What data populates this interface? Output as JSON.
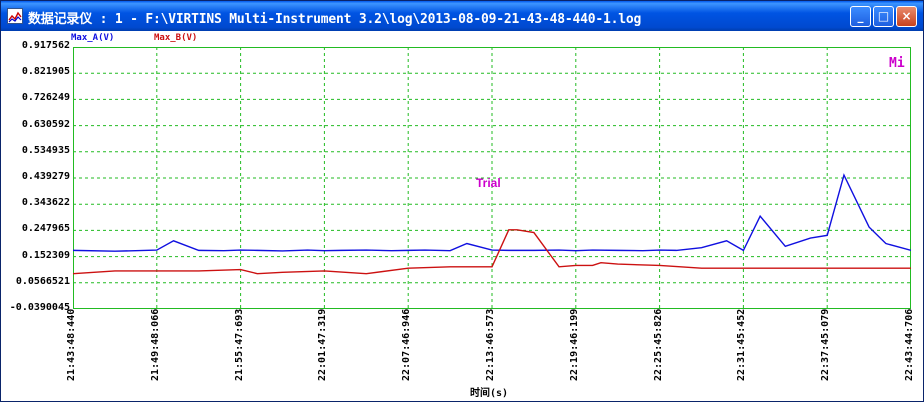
{
  "window": {
    "title": "数据记录仪 : 1 - F:\\VIRTINS Multi-Instrument 3.2\\log\\2013-08-09-21-43-48-440-1.log",
    "buttons": {
      "minimize": "_",
      "maximize": "□",
      "close": "×"
    }
  },
  "watermark": "Trial",
  "corner_label": "Mi",
  "colors": {
    "series_a": "#1010e0",
    "series_b": "#cc1111",
    "grid": "#22bb22",
    "accent": "#cc00cc"
  },
  "chart_data": {
    "type": "line",
    "xlabel": "时间(s)",
    "x_ticks": [
      "21:43:48:440",
      "21:49:48:066",
      "21:55:47:693",
      "22:01:47:319",
      "22:07:46:946",
      "22:13:46:573",
      "22:19:46:199",
      "22:25:45:826",
      "22:31:45:452",
      "22:37:45:079",
      "22:43:44:706"
    ],
    "y_ticks": [
      "0.917562",
      "0.821905",
      "0.726249",
      "0.630592",
      "0.534935",
      "0.439279",
      "0.343622",
      "0.247965",
      "0.152309",
      "0.0566521",
      "-0.0390045"
    ],
    "ylim": [
      -0.0390045,
      0.917562
    ],
    "grid": true,
    "series": [
      {
        "name": "Max_A(V)",
        "color": "#1010e0",
        "x": [
          0,
          5,
          10,
          12,
          15,
          18,
          20,
          22,
          25,
          28,
          30,
          32,
          35,
          38,
          40,
          42,
          45,
          47,
          50,
          52,
          55,
          58,
          60,
          62,
          65,
          68,
          70,
          72,
          75,
          78,
          80,
          82,
          85,
          88,
          90,
          92,
          95,
          97,
          100
        ],
        "y": [
          0.175,
          0.172,
          0.176,
          0.21,
          0.175,
          0.174,
          0.176,
          0.175,
          0.173,
          0.176,
          0.174,
          0.175,
          0.176,
          0.174,
          0.175,
          0.176,
          0.174,
          0.2,
          0.176,
          0.175,
          0.175,
          0.176,
          0.174,
          0.176,
          0.175,
          0.174,
          0.176,
          0.175,
          0.185,
          0.21,
          0.175,
          0.3,
          0.19,
          0.22,
          0.23,
          0.45,
          0.26,
          0.2,
          0.175
        ]
      },
      {
        "name": "Max_B(V)",
        "color": "#cc1111",
        "x": [
          0,
          5,
          10,
          15,
          20,
          22,
          25,
          30,
          35,
          40,
          45,
          46,
          50,
          52,
          53,
          55,
          58,
          60,
          62,
          63,
          65,
          70,
          75,
          78,
          80,
          85,
          90,
          95,
          100
        ],
        "y": [
          0.09,
          0.1,
          0.1,
          0.1,
          0.105,
          0.09,
          0.095,
          0.1,
          0.09,
          0.11,
          0.115,
          0.115,
          0.115,
          0.25,
          0.25,
          0.24,
          0.115,
          0.12,
          0.12,
          0.13,
          0.125,
          0.12,
          0.11,
          0.11,
          0.11,
          0.11,
          0.11,
          0.11,
          0.11
        ]
      }
    ],
    "legend": "top-left"
  }
}
